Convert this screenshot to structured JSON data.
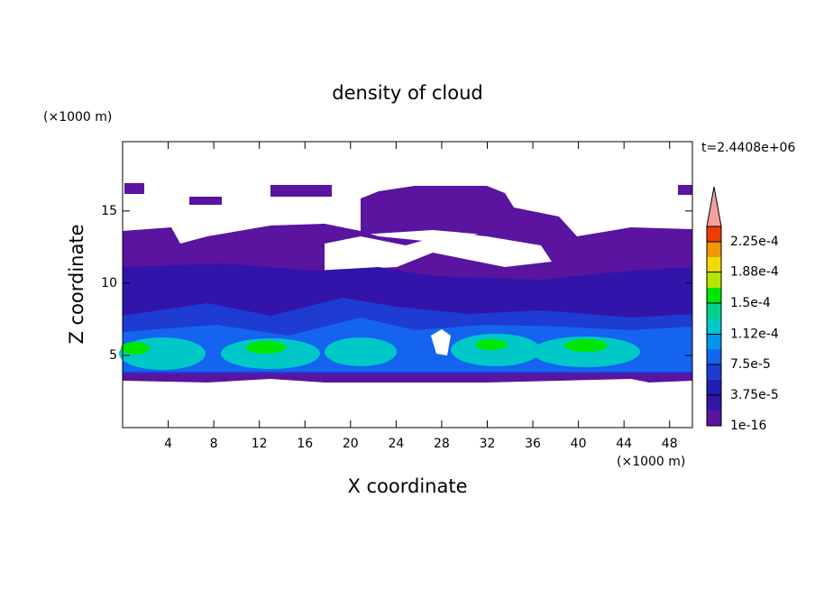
{
  "chart_data": {
    "type": "contour",
    "title": "density of cloud",
    "xlabel": "X coordinate",
    "ylabel": "Z coordinate",
    "xunit": "(×1000 m)",
    "yunit": "(×1000 m)",
    "annotation": "t=2.4408e+06",
    "xlim": [
      0,
      50
    ],
    "ylim": [
      0,
      19.8
    ],
    "xticks": [
      4,
      8,
      12,
      16,
      20,
      24,
      28,
      32,
      36,
      40,
      44,
      48
    ],
    "yticks": [
      5,
      10,
      15
    ],
    "colorbar": {
      "clim": [
        0,
        0.00024375
      ],
      "ticks": [
        {
          "value": 1e-16,
          "label": "1e-16"
        },
        {
          "value": 3.75e-05,
          "label": "3.75e-5"
        },
        {
          "value": 7.5e-05,
          "label": "7.5e-5"
        },
        {
          "value": 0.000112,
          "label": "1.12e-4"
        },
        {
          "value": 0.00015,
          "label": "1.5e-4"
        },
        {
          "value": 0.000188,
          "label": "1.88e-4"
        },
        {
          "value": 0.000225,
          "label": "2.25e-4"
        }
      ],
      "colors": [
        "#5a14a0",
        "#3214aa",
        "#1e1eb4",
        "#1e3cd2",
        "#1464f0",
        "#0096f0",
        "#00c8c8",
        "#00d28c",
        "#00e600",
        "#b4e600",
        "#f0dc00",
        "#f09600",
        "#f03c00"
      ],
      "extend_color": "#f4a0a0"
    }
  }
}
